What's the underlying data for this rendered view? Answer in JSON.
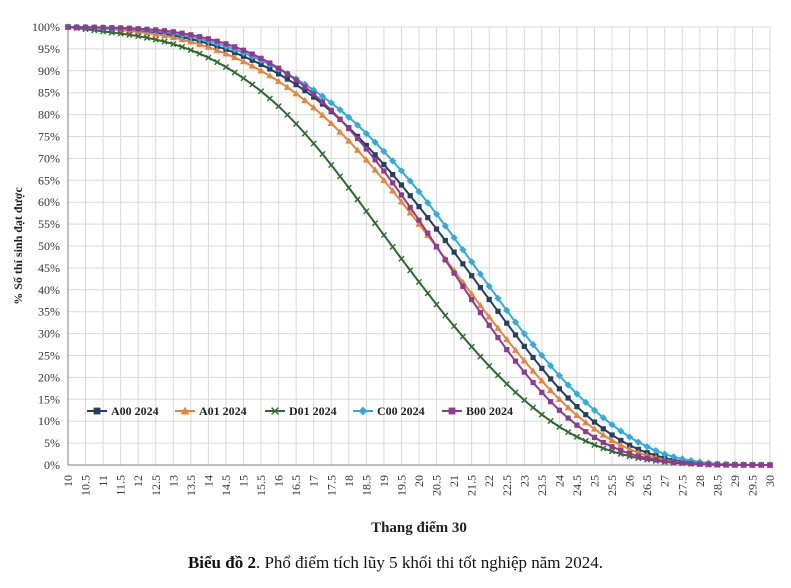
{
  "caption": {
    "label": "Biểu đồ 2",
    "text": ". Phổ điểm tích lũy 5 khối thi tốt nghiệp năm 2024."
  },
  "chart_data": {
    "type": "line",
    "xlabel": "Thang điểm 30",
    "ylabel": "% Số thí sinh đạt được",
    "xlim": [
      10,
      30
    ],
    "ylim": [
      0,
      100
    ],
    "x_step": 0.25,
    "x_tick_labels": [
      "10",
      "10.5",
      "11",
      "11.5",
      "12",
      "12.5",
      "13",
      "13.5",
      "14",
      "14.5",
      "15",
      "15.5",
      "16",
      "16.5",
      "17",
      "17.5",
      "18",
      "18.5",
      "19",
      "19.5",
      "20",
      "20.5",
      "21",
      "21.5",
      "22",
      "22.5",
      "23",
      "23.5",
      "24",
      "24.5",
      "25",
      "25.5",
      "26",
      "26.5",
      "27",
      "27.5",
      "28",
      "28.5",
      "29",
      "29.5",
      "30"
    ],
    "y_tick_labels": [
      "0%",
      "5%",
      "10%",
      "15%",
      "20%",
      "25%",
      "30%",
      "35%",
      "40%",
      "45%",
      "50%",
      "55%",
      "60%",
      "65%",
      "70%",
      "75%",
      "80%",
      "85%",
      "90%",
      "95%",
      "100%"
    ],
    "grid": true,
    "legend_position": "bottom-left",
    "series": [
      {
        "name": "A00 2024",
        "color": "#243f60",
        "marker": "square",
        "x": [
          10,
          11,
          12,
          13,
          14,
          15,
          16,
          17,
          18,
          19,
          20,
          21,
          22,
          23,
          24,
          25,
          26,
          27,
          28,
          29,
          30
        ],
        "values": [
          100,
          99.7,
          99.2,
          98.1,
          96.2,
          93.3,
          89.3,
          84.0,
          77.0,
          68.6,
          59.0,
          48.6,
          37.8,
          27.1,
          17.4,
          9.8,
          4.5,
          1.6,
          0.4,
          0.1,
          0
        ]
      },
      {
        "name": "A01 2024",
        "color": "#e8833a",
        "marker": "triangle",
        "x": [
          10,
          11,
          12,
          13,
          14,
          15,
          16,
          17,
          18,
          19,
          20,
          21,
          22,
          23,
          24,
          25,
          26,
          27,
          28,
          29,
          30
        ],
        "values": [
          100,
          99.6,
          98.9,
          97.6,
          95.4,
          92.1,
          87.6,
          81.6,
          74.0,
          65.0,
          55.0,
          44.4,
          33.8,
          23.8,
          15.0,
          8.2,
          3.6,
          1.2,
          0.3,
          0.1,
          0
        ]
      },
      {
        "name": "D01 2024",
        "color": "#2e6a2e",
        "marker": "x",
        "x": [
          10,
          11,
          12,
          13,
          14,
          15,
          16,
          17,
          18,
          19,
          20,
          21,
          22,
          23,
          24,
          25,
          26,
          27,
          28,
          29,
          30
        ],
        "values": [
          100,
          99.0,
          97.9,
          96.1,
          93.0,
          88.3,
          81.9,
          73.4,
          63.3,
          52.5,
          41.8,
          31.7,
          22.6,
          14.8,
          8.7,
          4.6,
          2.0,
          0.7,
          0.2,
          0,
          0
        ]
      },
      {
        "name": "C00 2024",
        "color": "#33aadd",
        "marker": "diamond",
        "x": [
          10,
          11,
          12,
          13,
          14,
          15,
          16,
          17,
          18,
          19,
          20,
          21,
          22,
          23,
          24,
          25,
          26,
          27,
          28,
          29,
          30
        ],
        "values": [
          100,
          99.8,
          99.4,
          98.5,
          96.8,
          94.1,
          90.4,
          85.6,
          79.4,
          71.6,
          62.4,
          51.9,
          40.8,
          30.0,
          20.4,
          12.5,
          6.4,
          2.5,
          0.7,
          0.1,
          0
        ]
      },
      {
        "name": "B00 2024",
        "color": "#8e3a91",
        "marker": "square",
        "x": [
          10,
          11,
          12,
          13,
          14,
          15,
          16,
          17,
          18,
          19,
          20,
          21,
          22,
          23,
          24,
          25,
          26,
          27,
          28,
          29,
          30
        ],
        "values": [
          100,
          99.9,
          99.6,
          98.9,
          97.3,
          94.7,
          90.6,
          84.7,
          76.8,
          67.1,
          55.9,
          43.8,
          31.9,
          21.2,
          12.5,
          6.3,
          2.6,
          0.9,
          0.2,
          0,
          0
        ]
      }
    ]
  }
}
